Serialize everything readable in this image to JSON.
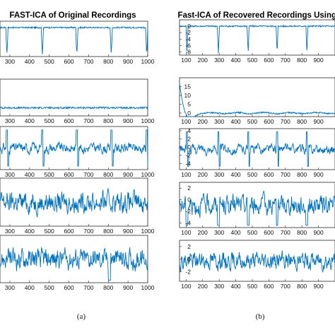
{
  "figure": {
    "caption_a": "(a)",
    "caption_b": "(b)"
  },
  "chart_data": [
    {
      "type": "line",
      "title": "FAST-ICA of Original Recordings",
      "xlim": [
        250,
        1000
      ],
      "xticks": [
        "300",
        "400",
        "500",
        "600",
        "700",
        "800",
        "900",
        "1000"
      ],
      "series_color": "#0072BD",
      "panels": [
        {
          "kind": "ecg",
          "amp": 1.0,
          "baseline": 0.0,
          "noise": 0.05,
          "peaks": [
            285,
            465,
            640,
            815,
            995
          ],
          "ylim": [
            -1.1,
            0.3
          ]
        },
        {
          "kind": "flat",
          "amp": 1.0,
          "baseline": 0.0,
          "noise": 0.06,
          "peaks": [],
          "ylim": [
            -1,
            1
          ]
        },
        {
          "kind": "mixed",
          "amp": 1.0,
          "baseline": 0.0,
          "noise": 0.25,
          "peaks": [
            285,
            465,
            640,
            815,
            995
          ],
          "ylim": [
            -1.2,
            1.0
          ]
        },
        {
          "kind": "noise",
          "amp": 1.0,
          "baseline": 0.0,
          "noise": 0.6,
          "peaks": [],
          "ylim": [
            -1.5,
            1.5
          ]
        },
        {
          "kind": "noise",
          "amp": 1.0,
          "baseline": 0.0,
          "noise": 0.55,
          "peaks": [
            805
          ],
          "ylim": [
            -1.5,
            1.5
          ]
        }
      ]
    },
    {
      "type": "line",
      "title": "Fast-ICA of Recovered Recordings Using I",
      "xlim": [
        60,
        1000
      ],
      "xticks": [
        "100",
        "200",
        "300",
        "400",
        "500",
        "600",
        "700",
        "800",
        "900"
      ],
      "series_color": "#0072BD",
      "panels": [
        {
          "kind": "ecg",
          "ylim": [
            -9,
            2
          ],
          "yticks": [
            "0",
            "-2",
            "-4",
            "-6",
            "-8"
          ],
          "peaks": [
            105,
            295,
            475,
            650,
            830
          ]
        },
        {
          "kind": "decay",
          "ylim": [
            -2,
            20
          ],
          "yticks": [
            "15",
            "10",
            "5",
            "0"
          ],
          "peaks": []
        },
        {
          "kind": "mixed",
          "ylim": [
            -5.5,
            4.5
          ],
          "yticks": [
            "4",
            "2",
            "0",
            "-2",
            "-4"
          ],
          "peaks": [
            105,
            295,
            475,
            650,
            830
          ]
        },
        {
          "kind": "noise",
          "ylim": [
            -4.8,
            3
          ],
          "yticks": [
            "2",
            "0",
            "-2",
            "-4"
          ],
          "peaks": [
            105,
            295,
            475,
            650,
            830
          ]
        },
        {
          "kind": "noise",
          "ylim": [
            -3.5,
            3
          ],
          "yticks": [
            "2",
            "0",
            "-2"
          ],
          "peaks": []
        }
      ]
    }
  ]
}
